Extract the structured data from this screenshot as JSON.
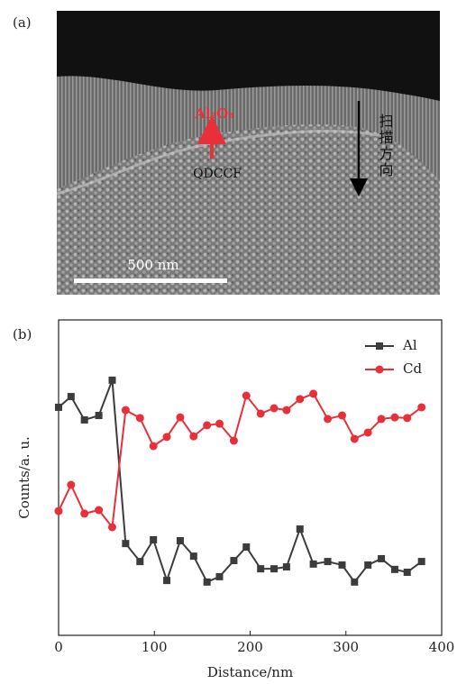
{
  "panel_labels": [
    "(a)",
    "(b)"
  ],
  "image": {
    "coating_label": "Al₂O₃",
    "fiber_label": "QDCCF",
    "scan_label": "扫描方向",
    "scale_label": "500 nm"
  },
  "chart_data": {
    "type": "line",
    "x_label": "Distance/nm",
    "y_label": "Counts/a. u.",
    "x": [
      0,
      13,
      27,
      42,
      56,
      70,
      85,
      99,
      113,
      127,
      141,
      155,
      168,
      183,
      196,
      211,
      225,
      238,
      252,
      266,
      281,
      296,
      309,
      323,
      337,
      351,
      364,
      379
    ],
    "series": [
      {
        "name": "Al",
        "color": "#3c3c3c",
        "marker": "square",
        "values": [
          72.3,
          75.7,
          68.3,
          69.7,
          80.9,
          29.1,
          23.4,
          30.3,
          17.4,
          30,
          25.1,
          16.9,
          18.6,
          23.7,
          28,
          21.1,
          21.1,
          21.7,
          33.7,
          22.6,
          23.4,
          22.3,
          16.9,
          22.3,
          24.3,
          20.9,
          20,
          23.4
        ]
      },
      {
        "name": "Cd",
        "color": "#e8303a",
        "marker": "circle",
        "values": [
          39.4,
          47.7,
          38.6,
          39.7,
          34.3,
          71.4,
          68.9,
          60,
          62.9,
          69.1,
          63.1,
          66.6,
          67.1,
          61.7,
          76,
          70.3,
          72,
          71.4,
          74.9,
          76.6,
          68.6,
          69.7,
          62.3,
          64.3,
          68.6,
          69.1,
          68.9,
          72.3
        ]
      }
    ],
    "xlim": [
      0,
      400
    ],
    "xticks": [
      0,
      100,
      200,
      300,
      400
    ],
    "ylim": [
      0,
      100
    ],
    "legend": "upper-right"
  }
}
